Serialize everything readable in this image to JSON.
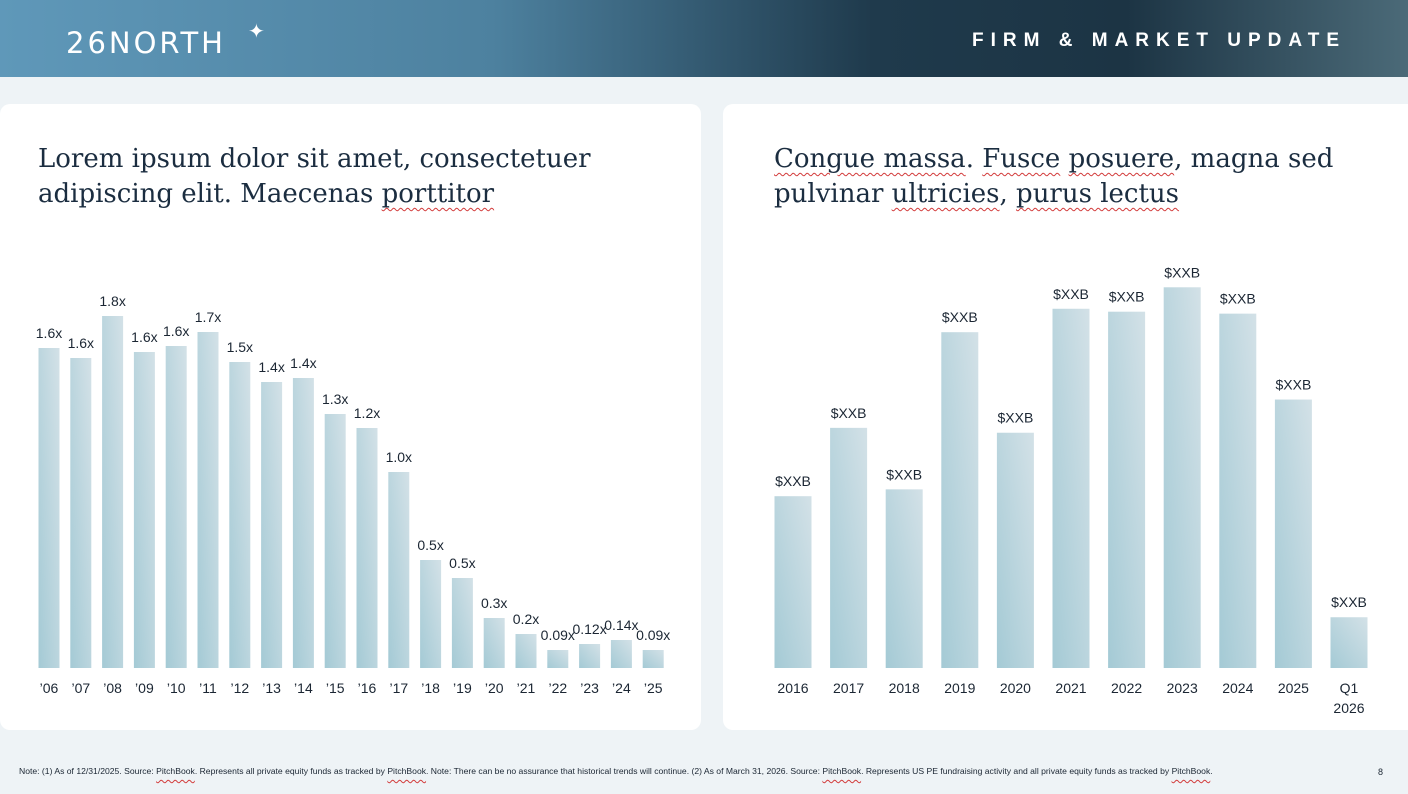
{
  "header": {
    "logo_text": "26NORTH",
    "logo_star": "✦",
    "right_title": "FIRM & MARKET UPDATE"
  },
  "colors": {
    "bar_top": "#d3e1e7",
    "bar_bottom": "#a4cad5",
    "text": "#1b2633"
  },
  "left_card": {
    "title_line1": "Lorem ipsum dolor sit amet, consectetuer",
    "title_line2_a": "adipiscing elit. Maecenas ",
    "title_line2_b": "porttitor"
  },
  "right_card": {
    "title_line1_a": "Congue massa",
    "title_line1_b": ". ",
    "title_line1_c": "Fusce",
    "title_line1_d": " ",
    "title_line1_e": "posuere",
    "title_line1_f": ", magna sed",
    "title_line2_a": "pulvinar ",
    "title_line2_b": "ultricies",
    "title_line2_c": ", ",
    "title_line2_d": "purus lectus"
  },
  "chart_data": [
    {
      "type": "bar",
      "categories": [
        "’06",
        "’07",
        "’08",
        "’09",
        "’10",
        "’11",
        "’12",
        "’13",
        "’14",
        "’15",
        "’16",
        "’17",
        "’18",
        "’19",
        "’20",
        "’21",
        "’22",
        "’23",
        "’24",
        "’25"
      ],
      "values": [
        1.6,
        1.55,
        1.76,
        1.58,
        1.61,
        1.68,
        1.53,
        1.43,
        1.45,
        1.27,
        1.2,
        0.98,
        0.54,
        0.45,
        0.25,
        0.17,
        0.09,
        0.12,
        0.14,
        0.09
      ],
      "labels": [
        "1.6x",
        "1.6x",
        "1.8x",
        "1.6x",
        "1.6x",
        "1.7x",
        "1.5x",
        "1.4x",
        "1.4x",
        "1.3x",
        "1.2x",
        "1.0x",
        "0.5x",
        "0.5x",
        "0.3x",
        "0.2x",
        "0.09x",
        "0.12x",
        "0.14x",
        "0.09x"
      ],
      "ylim": [
        0,
        2.0
      ],
      "grid": false,
      "legend": "none"
    },
    {
      "type": "bar",
      "categories": [
        "2016",
        "2017",
        "2018",
        "2019",
        "2020",
        "2021",
        "2022",
        "2023",
        "2024",
        "2025",
        "Q1 2026"
      ],
      "values": [
        176,
        246,
        183,
        344,
        241,
        368,
        365,
        390,
        363,
        275,
        52
      ],
      "labels": [
        "$XXB",
        "$XXB",
        "$XXB",
        "$XXB",
        "$XXB",
        "$XXB",
        "$XXB",
        "$XXB",
        "$XXB",
        "$XXB",
        "$XXB"
      ],
      "ylim": [
        0,
        420
      ],
      "grid": false,
      "legend": "none"
    }
  ],
  "footer": {
    "note_1": "Note: (1) As of 12/31/2025. Source: ",
    "pitchbook": "PitchBook",
    "note_2": ". Represents all private equity funds as tracked by ",
    "note_3": ". Note: There can be no assurance that historical trends will continue. (2) As of March 31, 2026. Source: ",
    "note_4": ". Represents US PE fundraising activity and all private equity funds as tracked by ",
    "note_5": ".",
    "page_number": "8"
  }
}
